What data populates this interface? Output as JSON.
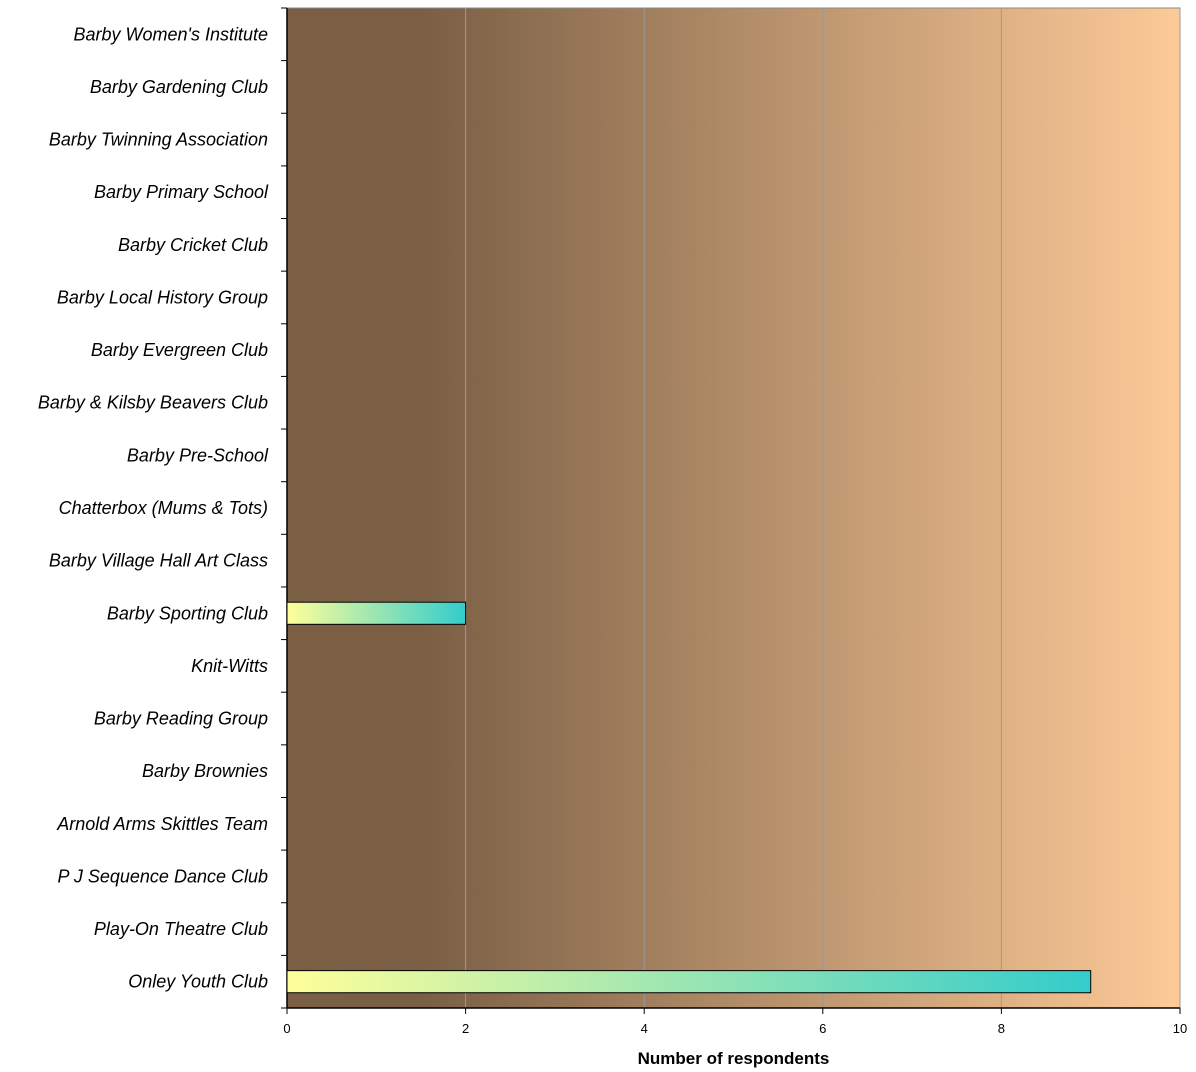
{
  "chart_data": {
    "type": "bar",
    "orientation": "horizontal",
    "categories": [
      "Barby Women's Institute",
      "Barby Gardening Club",
      "Barby Twinning Association",
      "Barby Primary School",
      "Barby Cricket Club",
      "Barby Local History Group",
      "Barby Evergreen Club",
      "Barby & Kilsby Beavers Club",
      "Barby Pre-School",
      "Chatterbox (Mums & Tots)",
      "Barby Village Hall Art Class",
      "Barby Sporting Club",
      "Knit-Witts",
      "Barby Reading Group",
      "Barby Brownies",
      "Arnold Arms Skittles Team",
      "P J Sequence Dance Club",
      "Play-On Theatre Club",
      "Onley Youth Club"
    ],
    "values": [
      0,
      0,
      0,
      0,
      0,
      0,
      0,
      0,
      0,
      0,
      0,
      2,
      0,
      0,
      0,
      0,
      0,
      0,
      9
    ],
    "xlabel": "Number of respondents",
    "ylabel": "",
    "title": "",
    "xlim": [
      0,
      10
    ],
    "xticks": [
      "0",
      "2",
      "4",
      "6",
      "8",
      "10"
    ],
    "grid": true,
    "legend": "none",
    "colors": {
      "plot_bg_start": "#7a5f45",
      "plot_bg_end": "#fdca98",
      "gridline": "#9a9a9a",
      "bar_start": "#ffff99",
      "bar_end": "#33cccc",
      "bar_border": "#000000"
    }
  }
}
